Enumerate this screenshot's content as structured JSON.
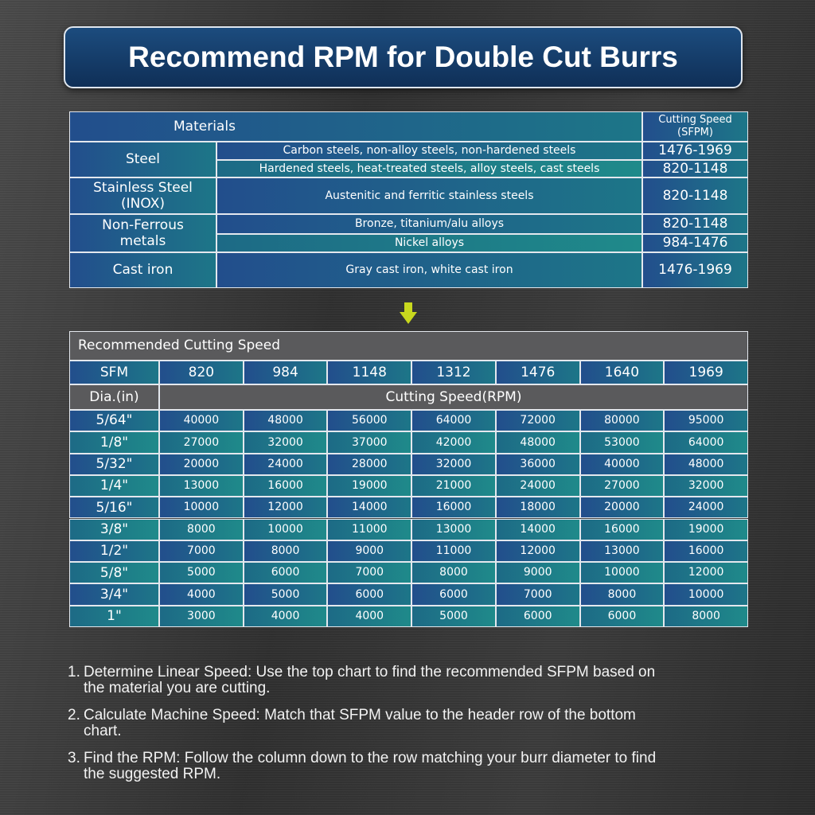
{
  "title": "Recommend RPM for Double Cut Burrs",
  "materials_table": {
    "header": {
      "material": "Materials",
      "speed": [
        "Cutting Speed",
        "(SFPM)"
      ]
    },
    "groups": [
      {
        "material": "Steel",
        "rows": [
          {
            "description": "Carbon steels, non-alloy steels, non-hardened steels",
            "speed": "1476-1969"
          },
          {
            "description": "Hardened steels, heat-treated steels, alloy steels, cast steels",
            "speed": "820-1148"
          }
        ]
      },
      {
        "material": "Stainless Steel (INOX)",
        "rows": [
          {
            "description": "Austenitic and ferritic stainless steels",
            "speed": "820-1148"
          }
        ]
      },
      {
        "material": "Non-Ferrous metals",
        "rows": [
          {
            "description": "Bronze, titanium/alu alloys",
            "speed": "820-1148"
          },
          {
            "description": "Nickel alloys",
            "speed": "984-1476"
          }
        ]
      },
      {
        "material": "Cast iron",
        "rows": [
          {
            "description": "Gray cast iron, white cast iron",
            "speed": "1476-1969"
          }
        ]
      }
    ]
  },
  "speed_table": {
    "title": "Recommended Cutting Speed",
    "sfm_label": "SFM",
    "sfm": [
      820,
      984,
      1148,
      1312,
      1476,
      1640,
      1969
    ],
    "dia_label": "Dia.(in)",
    "rpm_label": "Cutting Speed(RPM)",
    "rows": [
      {
        "dia": "5/64\"",
        "rpm": [
          40000,
          48000,
          56000,
          64000,
          72000,
          80000,
          95000
        ]
      },
      {
        "dia": "1/8\"",
        "rpm": [
          27000,
          32000,
          37000,
          42000,
          48000,
          53000,
          64000
        ]
      },
      {
        "dia": "5/32\"",
        "rpm": [
          20000,
          24000,
          28000,
          32000,
          36000,
          40000,
          48000
        ]
      },
      {
        "dia": "1/4\"",
        "rpm": [
          13000,
          16000,
          19000,
          21000,
          24000,
          27000,
          32000
        ]
      },
      {
        "dia": "5/16\"",
        "rpm": [
          10000,
          12000,
          14000,
          16000,
          18000,
          20000,
          24000
        ]
      },
      {
        "dia": "3/8\"",
        "rpm": [
          8000,
          10000,
          11000,
          13000,
          14000,
          16000,
          19000
        ]
      },
      {
        "dia": "1/2\"",
        "rpm": [
          7000,
          8000,
          9000,
          11000,
          12000,
          13000,
          16000
        ]
      },
      {
        "dia": "5/8\"",
        "rpm": [
          5000,
          6000,
          7000,
          8000,
          9000,
          10000,
          12000
        ]
      },
      {
        "dia": "3/4\"",
        "rpm": [
          4000,
          5000,
          6000,
          6000,
          7000,
          8000,
          10000
        ]
      },
      {
        "dia": "1\"",
        "rpm": [
          3000,
          4000,
          4000,
          5000,
          6000,
          6000,
          8000
        ]
      }
    ]
  },
  "steps": [
    {
      "number": "1.",
      "text": "Determine Linear Speed: Use the top chart to find the recommended SFPM based on the material you are cutting."
    },
    {
      "number": "2.",
      "text": "Calculate Machine Speed: Match that SFPM value to the header row of the bottom chart."
    },
    {
      "number": "3.",
      "text": "Find the RPM: Follow the column down to the row matching your burr diameter to find the suggested RPM."
    }
  ]
}
